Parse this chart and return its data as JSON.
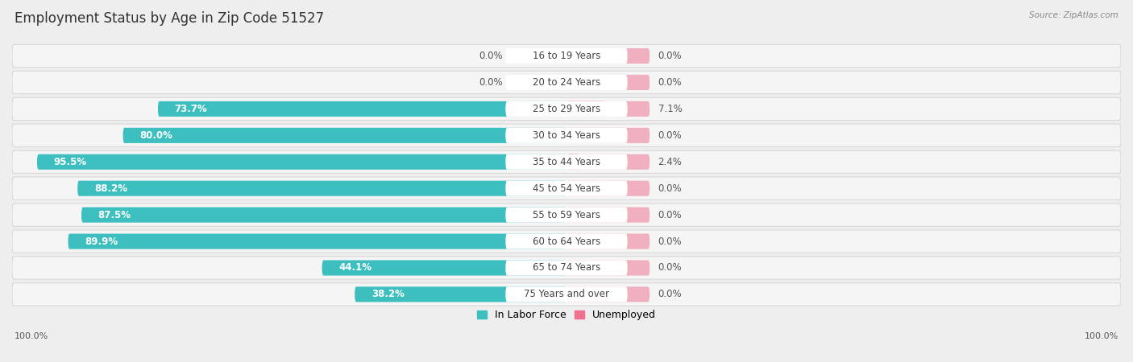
{
  "title": "Employment Status by Age in Zip Code 51527",
  "source": "Source: ZipAtlas.com",
  "categories": [
    "16 to 19 Years",
    "20 to 24 Years",
    "25 to 29 Years",
    "30 to 34 Years",
    "35 to 44 Years",
    "45 to 54 Years",
    "55 to 59 Years",
    "60 to 64 Years",
    "65 to 74 Years",
    "75 Years and over"
  ],
  "in_labor_force": [
    0.0,
    0.0,
    73.7,
    80.0,
    95.5,
    88.2,
    87.5,
    89.9,
    44.1,
    38.2
  ],
  "unemployed": [
    0.0,
    0.0,
    7.1,
    0.0,
    2.4,
    0.0,
    0.0,
    0.0,
    0.0,
    0.0
  ],
  "labor_force_color": "#3dbfbf",
  "labor_force_color_light": "#a8dede",
  "unemployed_color": "#f07090",
  "unemployed_color_light": "#f0b0c0",
  "bg_color": "#eeeeee",
  "row_bg_color": "#f5f5f5",
  "row_border_color": "#d8d8d8",
  "title_fontsize": 12,
  "label_fontsize": 8.5,
  "value_fontsize": 8.5,
  "axis_label_fontsize": 8,
  "legend_fontsize": 9,
  "max_value": 100.0,
  "placeholder_lf": 10.0,
  "placeholder_un": 15.0,
  "left_axis_label": "100.0%",
  "right_axis_label": "100.0%"
}
